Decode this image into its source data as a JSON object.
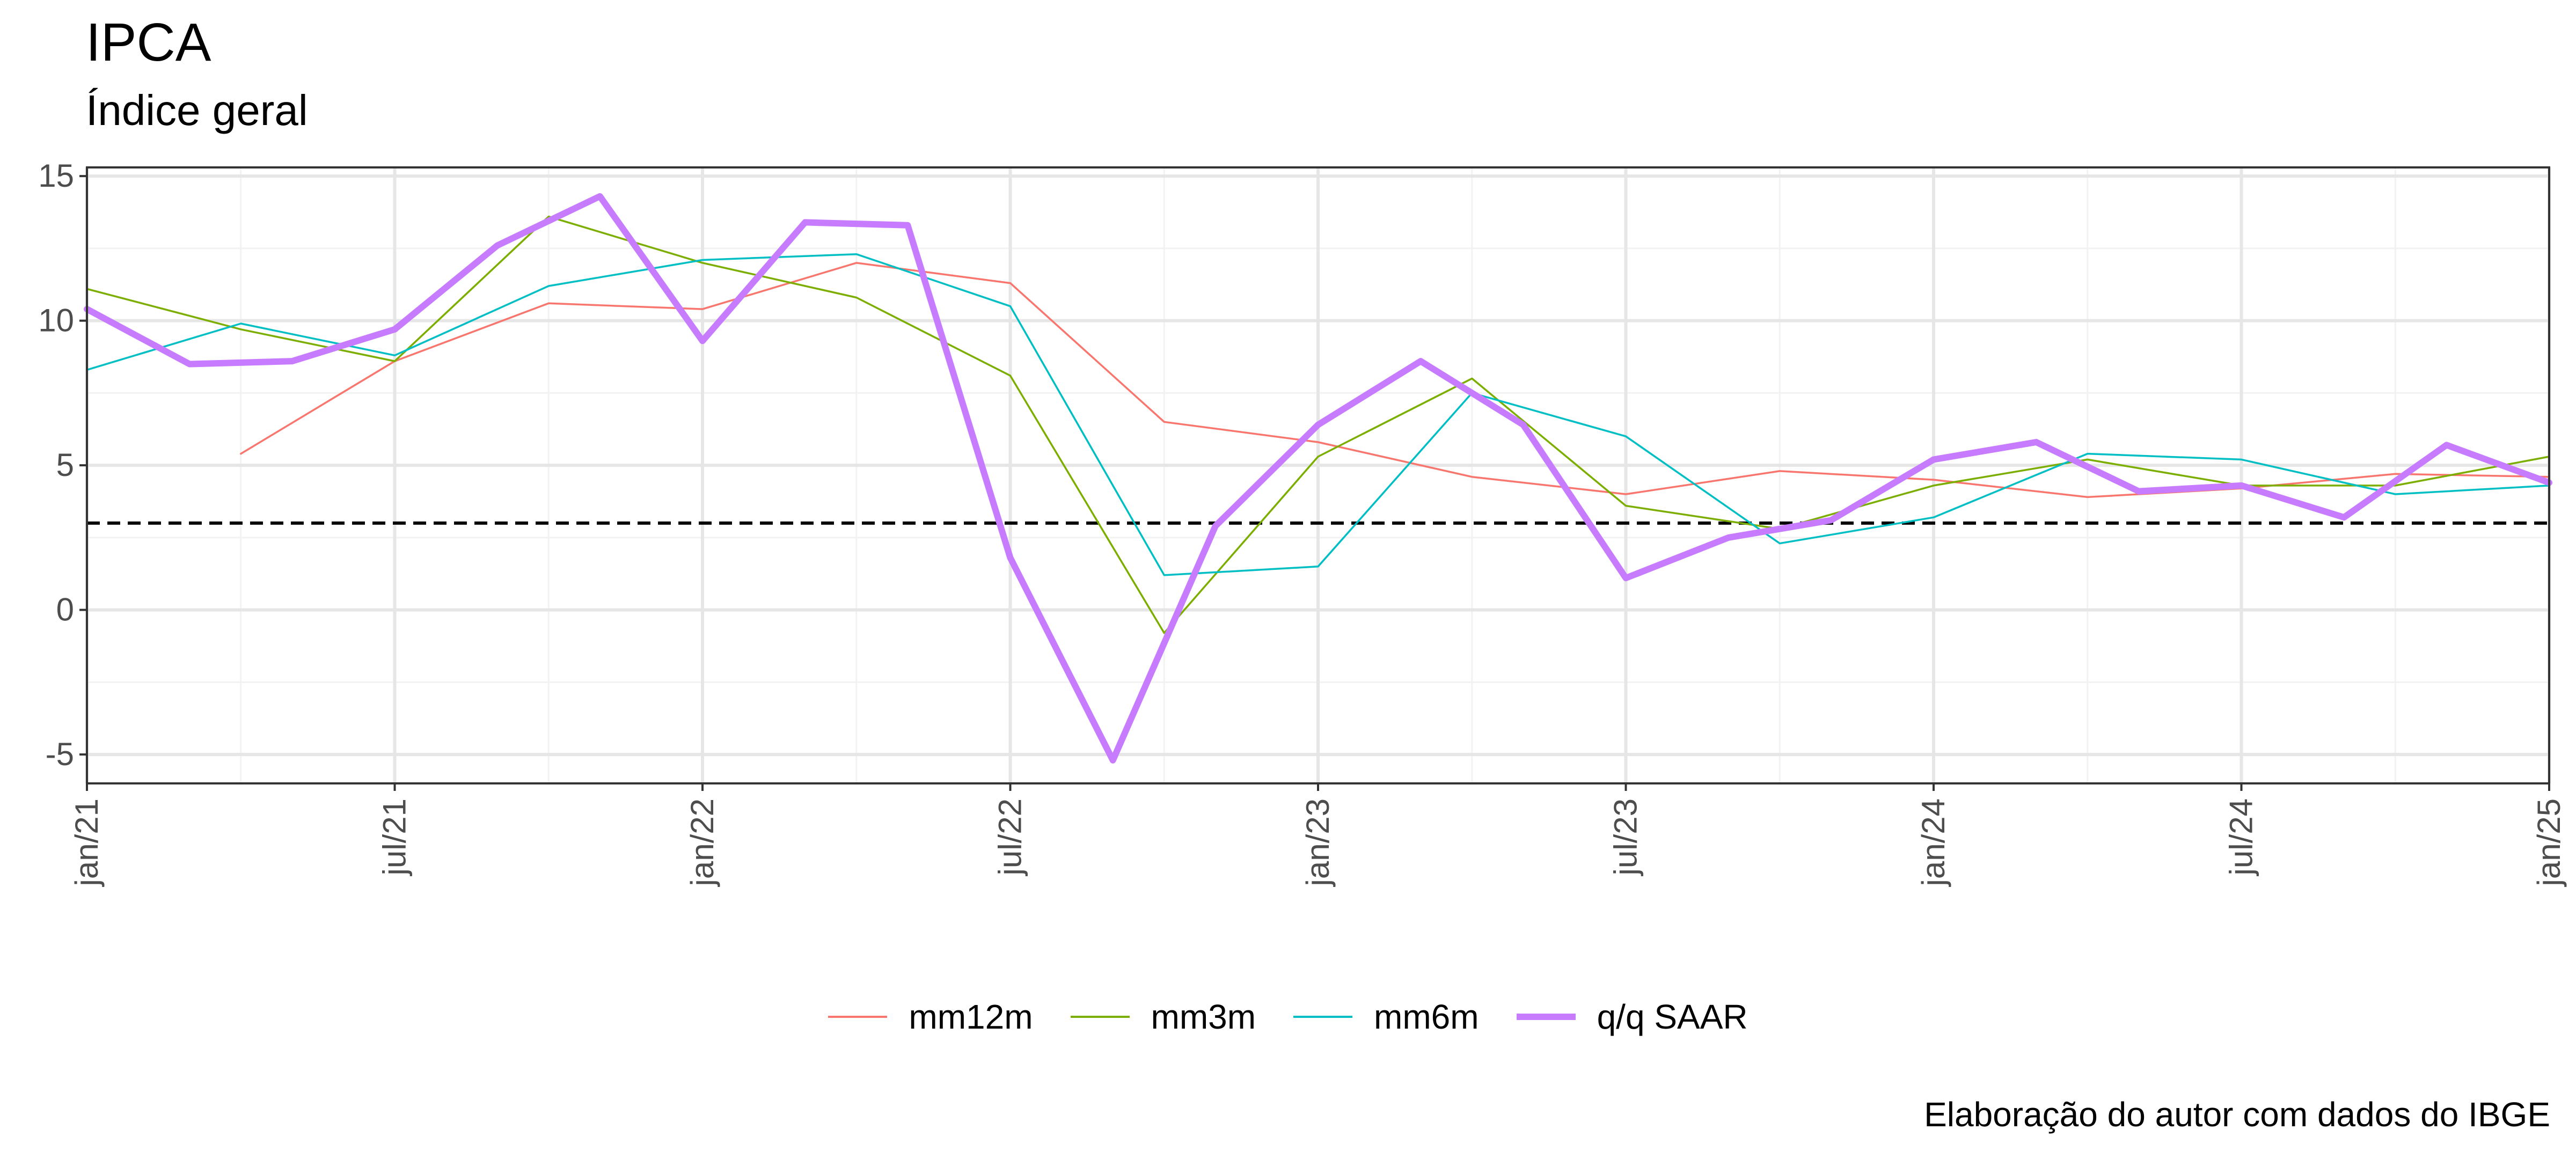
{
  "chart_data": {
    "type": "line",
    "title": "IPCA",
    "subtitle": "Índice geral",
    "caption": "Elaboração do autor com dados do IBGE",
    "ylim": [
      -6,
      15.3
    ],
    "y_ticks": [
      -5,
      0,
      5,
      10,
      15
    ],
    "y_tick_labels": [
      "-5",
      "0",
      "5",
      "10",
      "15"
    ],
    "x_ticks": [
      "jan/21",
      "jul/21",
      "jan/22",
      "jul/22",
      "jan/23",
      "jul/23",
      "jan/24",
      "jul/24",
      "jan/25"
    ],
    "x_range": [
      "jan/21",
      "jan/25"
    ],
    "grid": true,
    "legend_position": "bottom",
    "reference_line": {
      "y": 3,
      "style": "dashed",
      "color": "#000000"
    },
    "series": [
      {
        "name": "mm12m",
        "color": "#F8766D",
        "points": [
          [
            "apr/21",
            5.4
          ],
          [
            "jul/21",
            8.6
          ],
          [
            "oct/21",
            10.6
          ],
          [
            "jan/22",
            10.4
          ],
          [
            "apr/22",
            12.0
          ],
          [
            "jul/22",
            11.3
          ],
          [
            "oct/22",
            6.5
          ],
          [
            "jan/23",
            5.8
          ],
          [
            "apr/23",
            4.6
          ],
          [
            "jul/23",
            4.0
          ],
          [
            "oct/23",
            4.8
          ],
          [
            "jan/24",
            4.5
          ],
          [
            "apr/24",
            3.9
          ],
          [
            "jul/24",
            4.2
          ],
          [
            "oct/24",
            4.7
          ],
          [
            "jan/25",
            4.6
          ]
        ]
      },
      {
        "name": "mm3m",
        "color": "#7CAE00",
        "points": [
          [
            "jan/21",
            11.1
          ],
          [
            "apr/21",
            9.7
          ],
          [
            "jul/21",
            8.6
          ],
          [
            "oct/21",
            13.6
          ],
          [
            "jan/22",
            12.0
          ],
          [
            "apr/22",
            10.8
          ],
          [
            "jul/22",
            8.1
          ],
          [
            "oct/22",
            -0.8
          ],
          [
            "jan/23",
            5.3
          ],
          [
            "apr/23",
            8.0
          ],
          [
            "jul/23",
            3.6
          ],
          [
            "oct/23",
            2.8
          ],
          [
            "jan/24",
            4.3
          ],
          [
            "apr/24",
            5.2
          ],
          [
            "jul/24",
            4.3
          ],
          [
            "oct/24",
            4.3
          ],
          [
            "jan/25",
            5.3
          ]
        ]
      },
      {
        "name": "mm6m",
        "color": "#00BFC4",
        "points": [
          [
            "jan/21",
            8.3
          ],
          [
            "apr/21",
            9.9
          ],
          [
            "jul/21",
            8.8
          ],
          [
            "oct/21",
            11.2
          ],
          [
            "jan/22",
            12.1
          ],
          [
            "apr/22",
            12.3
          ],
          [
            "jul/22",
            10.5
          ],
          [
            "oct/22",
            1.2
          ],
          [
            "jan/23",
            1.5
          ],
          [
            "apr/23",
            7.5
          ],
          [
            "jul/23",
            6.0
          ],
          [
            "oct/23",
            2.3
          ],
          [
            "jan/24",
            3.2
          ],
          [
            "apr/24",
            5.4
          ],
          [
            "jul/24",
            5.2
          ],
          [
            "oct/24",
            4.0
          ],
          [
            "jan/25",
            4.3
          ]
        ]
      },
      {
        "name": "q/q SAAR",
        "color": "#C77CFF",
        "points": [
          [
            "jan/21",
            10.4
          ],
          [
            "mar/21",
            8.5
          ],
          [
            "may/21",
            8.6
          ],
          [
            "jul/21",
            9.7
          ],
          [
            "sep/21",
            12.6
          ],
          [
            "nov/21",
            14.3
          ],
          [
            "jan/22",
            9.3
          ],
          [
            "mar/22",
            13.4
          ],
          [
            "may/22",
            13.3
          ],
          [
            "jul/22",
            1.8
          ],
          [
            "sep/22",
            -5.2
          ],
          [
            "nov/22",
            2.9
          ],
          [
            "jan/23",
            6.4
          ],
          [
            "mar/23",
            8.6
          ],
          [
            "may/23",
            6.4
          ],
          [
            "jul/23",
            1.1
          ],
          [
            "sep/23",
            2.5
          ],
          [
            "nov/23",
            3.1
          ],
          [
            "jan/24",
            5.2
          ],
          [
            "mar/24",
            5.8
          ],
          [
            "may/24",
            4.1
          ],
          [
            "jul/24",
            4.3
          ],
          [
            "sep/24",
            3.2
          ],
          [
            "nov/24",
            5.7
          ],
          [
            "jan/25",
            4.4
          ]
        ]
      }
    ]
  }
}
